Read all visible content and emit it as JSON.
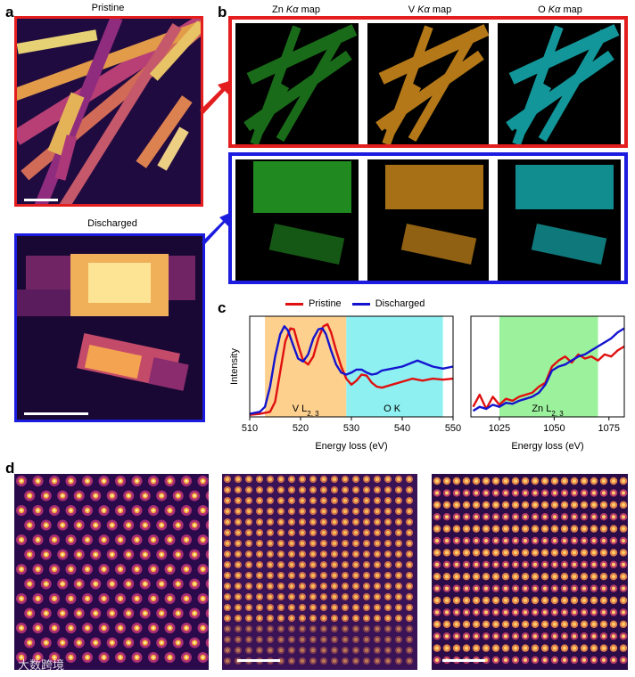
{
  "panel_a": {
    "letter": "a",
    "pristine_label": "Pristine",
    "discharged_label": "Discharged"
  },
  "panel_b": {
    "letter": "b",
    "maps": [
      {
        "element": "Zn",
        "line": "Kα",
        "suffix": "map",
        "color": "#2ec42e"
      },
      {
        "element": "V",
        "line": "Kα",
        "suffix": "map",
        "color": "#f0a020"
      },
      {
        "element": "O",
        "line": "Kα",
        "suffix": "map",
        "color": "#18c8cc"
      }
    ],
    "frame_colors": {
      "pristine": "#e41e1e",
      "discharged": "#1c1ce0"
    }
  },
  "panel_c": {
    "letter": "c",
    "legend": [
      "Pristine",
      "Discharged"
    ],
    "series_colors": {
      "Pristine": "#e01010",
      "Discharged": "#1414d0"
    },
    "ylabel": "Intensity",
    "xlabel_left": "Energy loss (eV)",
    "xlabel_right": "Energy loss (eV)",
    "region_labels": {
      "v": "V L",
      "v_sub": "2, 3",
      "o": "O K",
      "zn": "Zn L",
      "zn_sub": "2, 3"
    },
    "region_colors": {
      "v": "#fdd08e",
      "o": "#8ef0f0",
      "zn": "#9cf29c"
    }
  },
  "panel_d": {
    "letter": "d",
    "watermark": "大数跨境"
  },
  "chart_data": [
    {
      "type": "line",
      "title": "",
      "xlabel": "Energy loss (eV)",
      "ylabel": "Intensity",
      "xlim": [
        510,
        550
      ],
      "xticks": [
        510,
        520,
        530,
        540,
        550
      ],
      "grid": false,
      "legend": "top",
      "shaded_regions": [
        {
          "label": "V L2, 3",
          "x": [
            513,
            529
          ]
        },
        {
          "label": "O K",
          "x": [
            529,
            548
          ]
        }
      ],
      "series": [
        {
          "name": "Pristine",
          "x": [
            510,
            512,
            514,
            515,
            516,
            517,
            518,
            518.7,
            519.5,
            520.5,
            521.5,
            522.5,
            523.5,
            524.5,
            525.3,
            526,
            527,
            528,
            529,
            530,
            531,
            532,
            533,
            534,
            535,
            536,
            538,
            540,
            542,
            543,
            544,
            546,
            548,
            550
          ],
          "y": [
            0.02,
            0.03,
            0.05,
            0.15,
            0.45,
            0.75,
            0.88,
            0.87,
            0.72,
            0.56,
            0.52,
            0.6,
            0.78,
            0.9,
            0.92,
            0.84,
            0.66,
            0.5,
            0.38,
            0.32,
            0.36,
            0.42,
            0.41,
            0.34,
            0.3,
            0.29,
            0.32,
            0.35,
            0.38,
            0.37,
            0.36,
            0.38,
            0.37,
            0.38
          ]
        },
        {
          "name": "Discharged",
          "x": [
            510,
            512,
            513,
            514,
            515,
            516,
            516.8,
            517.5,
            518.5,
            519.5,
            520.5,
            521.5,
            522.5,
            523.5,
            524.3,
            525,
            526,
            527,
            528,
            529,
            530,
            531,
            532,
            533,
            534,
            535,
            536,
            538,
            540,
            542,
            543,
            544,
            546,
            548,
            550
          ],
          "y": [
            0.03,
            0.05,
            0.1,
            0.3,
            0.6,
            0.82,
            0.9,
            0.86,
            0.72,
            0.58,
            0.55,
            0.62,
            0.78,
            0.87,
            0.88,
            0.82,
            0.66,
            0.52,
            0.44,
            0.42,
            0.44,
            0.47,
            0.47,
            0.44,
            0.42,
            0.43,
            0.46,
            0.48,
            0.5,
            0.54,
            0.56,
            0.54,
            0.5,
            0.48,
            0.5
          ]
        }
      ]
    },
    {
      "type": "line",
      "title": "",
      "xlabel": "Energy loss (eV)",
      "xlim": [
        1012,
        1082
      ],
      "xticks": [
        1025,
        1050,
        1075
      ],
      "grid": false,
      "shaded_regions": [
        {
          "label": "Zn L2, 3",
          "x": [
            1025,
            1070
          ]
        }
      ],
      "series": [
        {
          "name": "Pristine",
          "x": [
            1013,
            1016,
            1019,
            1022,
            1025,
            1028,
            1031,
            1034,
            1037,
            1040,
            1043,
            1046,
            1049,
            1052,
            1055,
            1058,
            1061,
            1064,
            1067,
            1070,
            1073,
            1076,
            1079,
            1082
          ],
          "y": [
            0.1,
            0.22,
            0.08,
            0.2,
            0.12,
            0.18,
            0.16,
            0.2,
            0.22,
            0.24,
            0.3,
            0.34,
            0.5,
            0.56,
            0.6,
            0.54,
            0.62,
            0.58,
            0.6,
            0.56,
            0.62,
            0.6,
            0.66,
            0.7
          ]
        },
        {
          "name": "Discharged",
          "x": [
            1013,
            1016,
            1019,
            1022,
            1025,
            1028,
            1031,
            1034,
            1037,
            1040,
            1043,
            1046,
            1049,
            1052,
            1055,
            1058,
            1061,
            1064,
            1067,
            1070,
            1073,
            1076,
            1079,
            1082
          ],
          "y": [
            0.06,
            0.1,
            0.08,
            0.12,
            0.1,
            0.14,
            0.13,
            0.16,
            0.18,
            0.2,
            0.24,
            0.32,
            0.46,
            0.5,
            0.52,
            0.56,
            0.6,
            0.62,
            0.66,
            0.7,
            0.74,
            0.78,
            0.84,
            0.88
          ]
        }
      ]
    }
  ]
}
